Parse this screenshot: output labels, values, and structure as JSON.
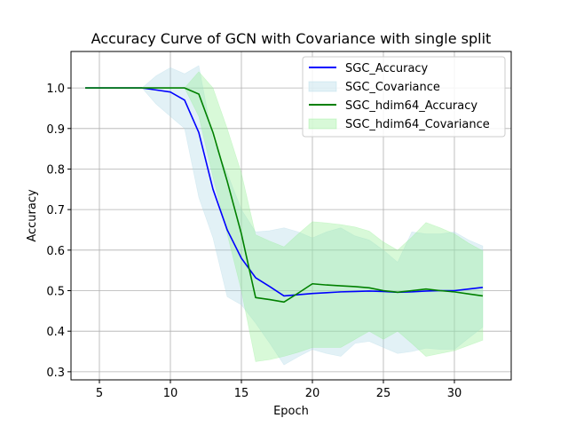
{
  "chart_data": {
    "type": "line",
    "title": "Accuracy Curve of GCN with Covariance with single split",
    "xlabel": "Epoch",
    "ylabel": "Accuracy",
    "xlim": [
      3,
      34
    ],
    "ylim": [
      0.28,
      1.09
    ],
    "xticks": [
      5,
      10,
      15,
      20,
      25,
      30
    ],
    "yticks": [
      0.3,
      0.4,
      0.5,
      0.6,
      0.7,
      0.8,
      0.9,
      1.0
    ],
    "grid": true,
    "legend_position": "upper right",
    "series": [
      {
        "name": "SGC_Accuracy",
        "band_name": "SGC_Covariance",
        "color": "#0000ff",
        "band_color": "#add8e6",
        "x": [
          4,
          5,
          6,
          7,
          8,
          9,
          10,
          11,
          12,
          13,
          14,
          15,
          16,
          17,
          18,
          19,
          20,
          21,
          22,
          23,
          24,
          25,
          26,
          27,
          28,
          29,
          30,
          31,
          32
        ],
        "y": [
          1.0,
          1.0,
          1.0,
          1.0,
          1.0,
          0.995,
          0.99,
          0.97,
          0.89,
          0.75,
          0.65,
          0.58,
          0.532,
          0.51,
          0.487,
          0.49,
          0.493,
          0.495,
          0.497,
          0.498,
          0.499,
          0.498,
          0.496,
          0.497,
          0.499,
          0.5,
          0.5,
          0.504,
          0.508
        ],
        "upper": [
          1.0,
          1.0,
          1.0,
          1.0,
          1.0,
          1.03,
          1.05,
          1.035,
          1.055,
          0.87,
          0.79,
          0.7,
          0.645,
          0.648,
          0.655,
          0.645,
          0.63,
          0.645,
          0.655,
          0.635,
          0.625,
          0.6,
          0.57,
          0.645,
          0.64,
          0.64,
          0.645,
          0.625,
          0.61
        ],
        "lower": [
          1.0,
          1.0,
          1.0,
          1.0,
          1.0,
          0.96,
          0.93,
          0.9,
          0.73,
          0.63,
          0.485,
          0.465,
          0.42,
          0.37,
          0.317,
          0.337,
          0.355,
          0.345,
          0.338,
          0.37,
          0.375,
          0.36,
          0.345,
          0.35,
          0.358,
          0.355,
          0.355,
          0.383,
          0.41
        ]
      },
      {
        "name": "SGC_hdim64_Accuracy",
        "band_name": "SGC_hdim64_Covariance",
        "color": "#008000",
        "band_color": "#90ee90",
        "x": [
          4,
          5,
          6,
          7,
          8,
          9,
          10,
          11,
          12,
          13,
          14,
          15,
          16,
          17,
          18,
          19,
          20,
          21,
          22,
          23,
          24,
          25,
          26,
          27,
          28,
          29,
          30,
          31,
          32
        ],
        "y": [
          1.0,
          1.0,
          1.0,
          1.0,
          1.0,
          1.0,
          1.0,
          1.0,
          0.985,
          0.89,
          0.77,
          0.64,
          0.483,
          0.478,
          0.472,
          0.494,
          0.517,
          0.514,
          0.512,
          0.51,
          0.507,
          0.5,
          0.496,
          0.5,
          0.504,
          0.5,
          0.497,
          0.492,
          0.487
        ],
        "upper": [
          1.0,
          1.0,
          1.0,
          1.0,
          1.0,
          1.0,
          1.0,
          1.0,
          1.04,
          1.0,
          0.9,
          0.79,
          0.638,
          0.622,
          0.608,
          0.64,
          0.67,
          0.667,
          0.663,
          0.657,
          0.647,
          0.62,
          0.6,
          0.632,
          0.668,
          0.655,
          0.64,
          0.617,
          0.598
        ],
        "lower": [
          1.0,
          1.0,
          1.0,
          1.0,
          1.0,
          1.0,
          1.0,
          1.0,
          0.93,
          0.78,
          0.64,
          0.5,
          0.325,
          0.33,
          0.338,
          0.348,
          0.36,
          0.36,
          0.36,
          0.38,
          0.4,
          0.38,
          0.4,
          0.37,
          0.338,
          0.345,
          0.352,
          0.365,
          0.378
        ]
      }
    ],
    "legend": [
      "SGC_Accuracy",
      "SGC_Covariance",
      "SGC_hdim64_Accuracy",
      "SGC_hdim64_Covariance"
    ]
  }
}
